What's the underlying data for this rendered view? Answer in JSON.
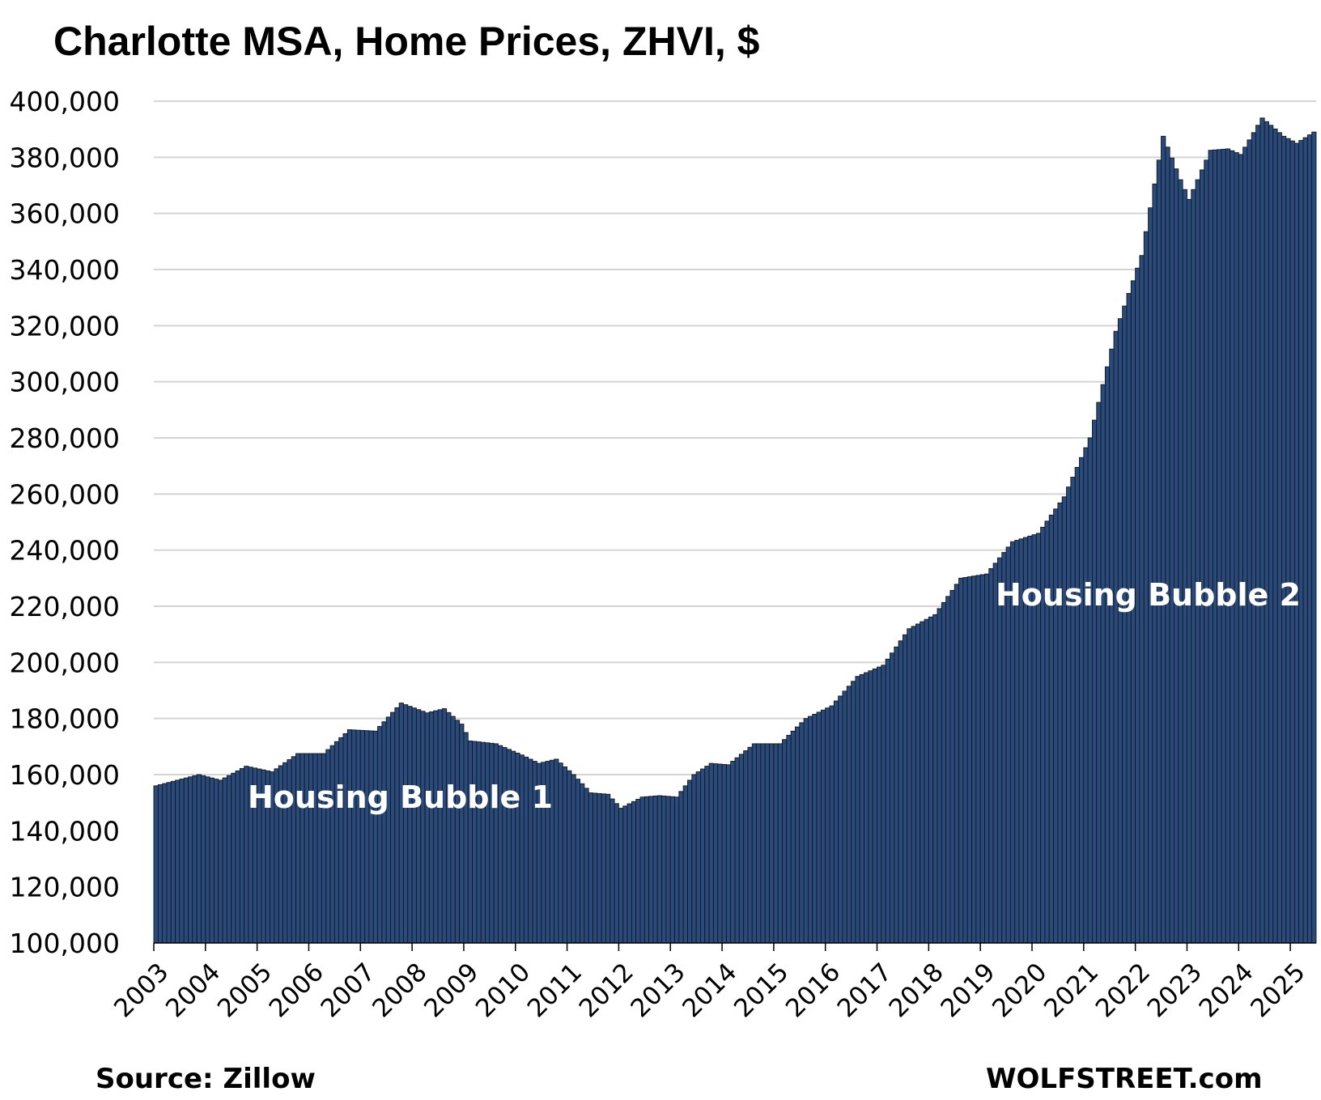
{
  "chart_data": {
    "type": "bar",
    "title": "Charlotte MSA, Home Prices, ZHVI, $",
    "xlabel": "",
    "ylabel": "",
    "ylim": [
      100000,
      400000
    ],
    "yticks": [
      "100,000",
      "120,000",
      "140,000",
      "160,000",
      "180,000",
      "200,000",
      "220,000",
      "240,000",
      "260,000",
      "280,000",
      "300,000",
      "320,000",
      "340,000",
      "360,000",
      "380,000",
      "400,000"
    ],
    "xtick_labels": [
      "2003",
      "2004",
      "2005",
      "2006",
      "2007",
      "2008",
      "2009",
      "2010",
      "2011",
      "2012",
      "2013",
      "2014",
      "2015",
      "2016",
      "2017",
      "2018",
      "2019",
      "2020",
      "2021",
      "2022",
      "2023",
      "2024",
      "2025"
    ],
    "grid": "horizontal",
    "bar_color": "#2b4a7c",
    "bar_edge_color": "#101820",
    "frequency": "monthly",
    "start": "2003-01",
    "end": "2025-06",
    "anchor_points": [
      {
        "date": "2003-01",
        "value": 156000
      },
      {
        "date": "2003-06",
        "value": 158000
      },
      {
        "date": "2003-11",
        "value": 160000
      },
      {
        "date": "2004-04",
        "value": 158000
      },
      {
        "date": "2004-10",
        "value": 163000
      },
      {
        "date": "2005-04",
        "value": 161000
      },
      {
        "date": "2005-10",
        "value": 167500
      },
      {
        "date": "2006-04",
        "value": 167500
      },
      {
        "date": "2006-10",
        "value": 176000
      },
      {
        "date": "2007-04",
        "value": 175500
      },
      {
        "date": "2007-10",
        "value": 185500
      },
      {
        "date": "2008-04",
        "value": 182000
      },
      {
        "date": "2008-08",
        "value": 183500
      },
      {
        "date": "2008-12",
        "value": 178000
      },
      {
        "date": "2009-02",
        "value": 172000
      },
      {
        "date": "2009-08",
        "value": 171000
      },
      {
        "date": "2010-02",
        "value": 167000
      },
      {
        "date": "2010-06",
        "value": 164000
      },
      {
        "date": "2010-10",
        "value": 165500
      },
      {
        "date": "2011-02",
        "value": 160000
      },
      {
        "date": "2011-06",
        "value": 153500
      },
      {
        "date": "2011-10",
        "value": 153000
      },
      {
        "date": "2012-01",
        "value": 148000
      },
      {
        "date": "2012-06",
        "value": 152000
      },
      {
        "date": "2012-10",
        "value": 152500
      },
      {
        "date": "2013-02",
        "value": 152000
      },
      {
        "date": "2013-06",
        "value": 160000
      },
      {
        "date": "2013-10",
        "value": 164000
      },
      {
        "date": "2014-02",
        "value": 163500
      },
      {
        "date": "2014-08",
        "value": 171000
      },
      {
        "date": "2015-02",
        "value": 171000
      },
      {
        "date": "2015-08",
        "value": 180000
      },
      {
        "date": "2016-02",
        "value": 184500
      },
      {
        "date": "2016-08",
        "value": 195000
      },
      {
        "date": "2017-02",
        "value": 199000
      },
      {
        "date": "2017-08",
        "value": 212000
      },
      {
        "date": "2018-02",
        "value": 217000
      },
      {
        "date": "2018-08",
        "value": 230000
      },
      {
        "date": "2019-02",
        "value": 231500
      },
      {
        "date": "2019-08",
        "value": 243000
      },
      {
        "date": "2020-02",
        "value": 246000
      },
      {
        "date": "2020-08",
        "value": 259000
      },
      {
        "date": "2021-02",
        "value": 280000
      },
      {
        "date": "2021-08",
        "value": 318000
      },
      {
        "date": "2022-02",
        "value": 345000
      },
      {
        "date": "2022-07",
        "value": 387500
      },
      {
        "date": "2022-11",
        "value": 372000
      },
      {
        "date": "2023-01",
        "value": 365000
      },
      {
        "date": "2023-06",
        "value": 382500
      },
      {
        "date": "2023-10",
        "value": 383000
      },
      {
        "date": "2024-01",
        "value": 381000
      },
      {
        "date": "2024-06",
        "value": 394000
      },
      {
        "date": "2024-11",
        "value": 387500
      },
      {
        "date": "2025-02",
        "value": 385000
      },
      {
        "date": "2025-06",
        "value": 389000
      }
    ],
    "annotations": [
      "Housing Bubble 1",
      "Housing Bubble 2"
    ]
  },
  "footer": {
    "source": "Source: Zillow",
    "brand": "WOLFSTREET.com"
  }
}
